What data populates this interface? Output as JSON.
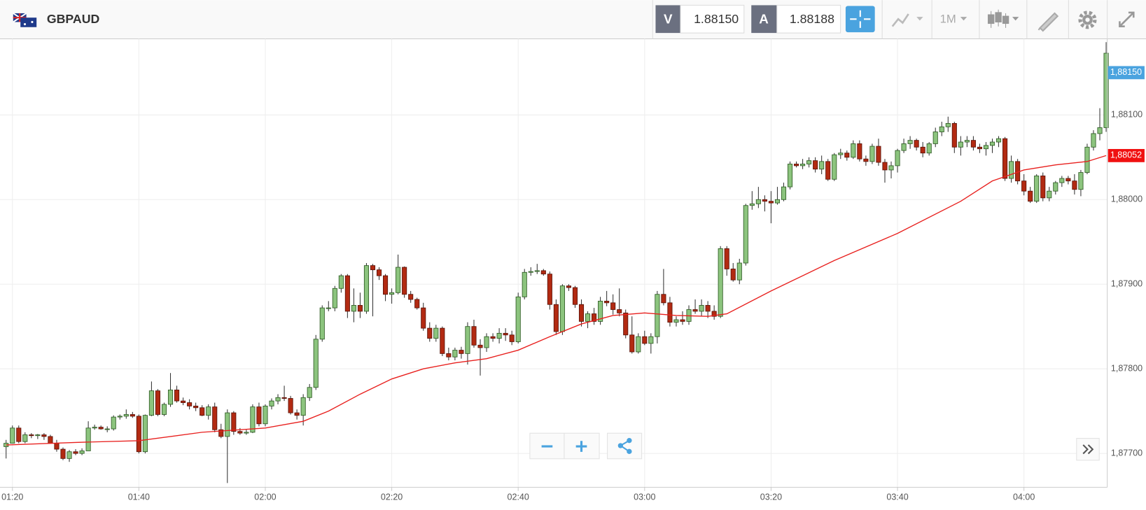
{
  "header": {
    "symbol": "GBPAUD",
    "bid_label": "V",
    "bid": "1.88150",
    "ask_label": "A",
    "ask": "1.88188",
    "timeframe": "1M"
  },
  "chart_data": {
    "type": "candlestick",
    "x": [
      "01:19",
      "01:20",
      "01:21",
      "01:22",
      "01:23",
      "01:24",
      "01:25",
      "01:26",
      "01:27",
      "01:28",
      "01:29",
      "01:30",
      "01:31",
      "01:32",
      "01:33",
      "01:34",
      "01:35",
      "01:36",
      "01:37",
      "01:38",
      "01:39",
      "01:40",
      "01:41",
      "01:42",
      "01:43",
      "01:44",
      "01:45",
      "01:46",
      "01:47",
      "01:48",
      "01:49",
      "01:50",
      "01:51",
      "01:52",
      "01:53",
      "01:54",
      "01:55",
      "01:56",
      "01:57",
      "01:58",
      "01:59",
      "02:00",
      "02:01",
      "02:02",
      "02:03",
      "02:04",
      "02:05",
      "02:06",
      "02:07",
      "02:08",
      "02:09",
      "02:10",
      "02:11",
      "02:12",
      "02:13",
      "02:14",
      "02:15",
      "02:16",
      "02:17",
      "02:18",
      "02:19",
      "02:20",
      "02:21",
      "02:22",
      "02:23",
      "02:24",
      "02:25",
      "02:26",
      "02:27",
      "02:28",
      "02:29",
      "02:30",
      "02:31",
      "02:32",
      "02:33",
      "02:34",
      "02:35",
      "02:36",
      "02:37",
      "02:38",
      "02:39",
      "02:40",
      "02:41",
      "02:42",
      "02:43",
      "02:44",
      "02:45",
      "02:46",
      "02:47",
      "02:48",
      "02:49",
      "02:50",
      "02:51",
      "02:52",
      "02:53",
      "02:54",
      "02:55",
      "02:56",
      "02:57",
      "02:58",
      "02:59",
      "03:00",
      "03:01",
      "03:02",
      "03:03",
      "03:04",
      "03:05",
      "03:06",
      "03:07",
      "03:08",
      "03:09",
      "03:10",
      "03:11",
      "03:12",
      "03:13",
      "03:14",
      "03:15",
      "03:16",
      "03:17",
      "03:18",
      "03:19",
      "03:20",
      "03:21",
      "03:22",
      "03:23",
      "03:24",
      "03:25",
      "03:26",
      "03:27",
      "03:28",
      "03:29",
      "03:30",
      "03:31",
      "03:32",
      "03:33",
      "03:34",
      "03:35",
      "03:36",
      "03:37",
      "03:38",
      "03:39",
      "03:40",
      "03:41",
      "03:42",
      "03:43",
      "03:44",
      "03:45",
      "03:46",
      "03:47",
      "03:48",
      "03:49",
      "03:50",
      "03:51",
      "03:52",
      "03:53",
      "03:54",
      "03:55",
      "03:56",
      "03:57",
      "03:58",
      "03:59",
      "04:00",
      "04:01",
      "04:02",
      "04:03",
      "04:04",
      "04:05",
      "04:06",
      "04:07",
      "04:08",
      "04:09",
      "04:10",
      "04:11",
      "04:12",
      "04:13"
    ],
    "candles": [
      [
        1.87708,
        1.87716,
        1.87694,
        1.87712
      ],
      [
        1.87712,
        1.87733,
        1.87712,
        1.8773
      ],
      [
        1.8773,
        1.87733,
        1.87712,
        1.87714
      ],
      [
        1.87714,
        1.87725,
        1.87712,
        1.87722
      ],
      [
        1.87722,
        1.87724,
        1.87718,
        1.87721
      ],
      [
        1.87721,
        1.87723,
        1.87717,
        1.87722
      ],
      [
        1.87722,
        1.87724,
        1.87716,
        1.8772
      ],
      [
        1.8772,
        1.87722,
        1.87712,
        1.87712
      ],
      [
        1.87712,
        1.87716,
        1.87702,
        1.87705
      ],
      [
        1.87705,
        1.87707,
        1.87692,
        1.87694
      ],
      [
        1.87694,
        1.87704,
        1.8769,
        1.87702
      ],
      [
        1.87702,
        1.87705,
        1.87698,
        1.877
      ],
      [
        1.877,
        1.87706,
        1.87698,
        1.87703
      ],
      [
        1.87703,
        1.87738,
        1.87703,
        1.8773
      ],
      [
        1.8773,
        1.87734,
        1.87728,
        1.87731
      ],
      [
        1.87731,
        1.87733,
        1.87728,
        1.87729
      ],
      [
        1.87729,
        1.87732,
        1.87725,
        1.87729
      ],
      [
        1.87729,
        1.87745,
        1.87727,
        1.87743
      ],
      [
        1.87743,
        1.87746,
        1.8774,
        1.87744
      ],
      [
        1.87744,
        1.87752,
        1.87741,
        1.87746
      ],
      [
        1.87746,
        1.87749,
        1.87742,
        1.87744
      ],
      [
        1.87744,
        1.87746,
        1.877,
        1.87702
      ],
      [
        1.87702,
        1.87746,
        1.877,
        1.87745
      ],
      [
        1.87745,
        1.87785,
        1.87744,
        1.87774
      ],
      [
        1.87774,
        1.87776,
        1.87744,
        1.87746
      ],
      [
        1.87746,
        1.8776,
        1.87744,
        1.87758
      ],
      [
        1.87758,
        1.87795,
        1.87755,
        1.87775
      ],
      [
        1.87775,
        1.8778,
        1.8776,
        1.87762
      ],
      [
        1.87762,
        1.87766,
        1.87757,
        1.8776
      ],
      [
        1.8776,
        1.87764,
        1.87752,
        1.87756
      ],
      [
        1.87756,
        1.8776,
        1.8775,
        1.87754
      ],
      [
        1.87754,
        1.87757,
        1.87744,
        1.87745
      ],
      [
        1.87745,
        1.87758,
        1.8774,
        1.87755
      ],
      [
        1.87755,
        1.8776,
        1.87725,
        1.87728
      ],
      [
        1.87728,
        1.87735,
        1.87718,
        1.8772
      ],
      [
        1.8772,
        1.87752,
        1.87665,
        1.87748
      ],
      [
        1.87748,
        1.8775,
        1.87722,
        1.87726
      ],
      [
        1.87726,
        1.8773,
        1.87722,
        1.87724
      ],
      [
        1.87724,
        1.87728,
        1.87722,
        1.87725
      ],
      [
        1.87725,
        1.87758,
        1.87724,
        1.87755
      ],
      [
        1.87755,
        1.8776,
        1.87732,
        1.87735
      ],
      [
        1.87735,
        1.87758,
        1.87732,
        1.87756
      ],
      [
        1.87756,
        1.87765,
        1.87752,
        1.87762
      ],
      [
        1.87762,
        1.8777,
        1.87758,
        1.87766
      ],
      [
        1.87766,
        1.8778,
        1.87762,
        1.87765
      ],
      [
        1.87765,
        1.87768,
        1.87746,
        1.87748
      ],
      [
        1.87748,
        1.87752,
        1.8774,
        1.87745
      ],
      [
        1.87745,
        1.8777,
        1.87733,
        1.87766
      ],
      [
        1.87766,
        1.87782,
        1.87762,
        1.87778
      ],
      [
        1.87778,
        1.8784,
        1.87775,
        1.87835
      ],
      [
        1.87835,
        1.87875,
        1.87832,
        1.87872
      ],
      [
        1.87872,
        1.8788,
        1.87868,
        1.87872
      ],
      [
        1.87872,
        1.87898,
        1.87868,
        1.87895
      ],
      [
        1.87895,
        1.87912,
        1.8789,
        1.8791
      ],
      [
        1.8791,
        1.87912,
        1.8786,
        1.87868
      ],
      [
        1.87868,
        1.87895,
        1.87855,
        1.87875
      ],
      [
        1.87875,
        1.8789,
        1.8786,
        1.87868
      ],
      [
        1.87868,
        1.87925,
        1.87865,
        1.87922
      ],
      [
        1.87922,
        1.87924,
        1.87862,
        1.87917
      ],
      [
        1.87917,
        1.8792,
        1.87905,
        1.8791
      ],
      [
        1.8791,
        1.87912,
        1.8788,
        1.87888
      ],
      [
        1.87888,
        1.87895,
        1.87877,
        1.8789
      ],
      [
        1.8789,
        1.87935,
        1.87888,
        1.8792
      ],
      [
        1.8792,
        1.87921,
        1.87884,
        1.87888
      ],
      [
        1.87888,
        1.87892,
        1.87878,
        1.87882
      ],
      [
        1.87882,
        1.87884,
        1.8787,
        1.87872
      ],
      [
        1.87872,
        1.87878,
        1.87845,
        1.87848
      ],
      [
        1.87848,
        1.87855,
        1.87832,
        1.87836
      ],
      [
        1.87836,
        1.87852,
        1.87832,
        1.87848
      ],
      [
        1.87848,
        1.8785,
        1.87815,
        1.87818
      ],
      [
        1.87818,
        1.87825,
        1.8781,
        1.87814
      ],
      [
        1.87814,
        1.87825,
        1.8781,
        1.87822
      ],
      [
        1.87822,
        1.87826,
        1.87812,
        1.87818
      ],
      [
        1.87818,
        1.87855,
        1.87805,
        1.8785
      ],
      [
        1.8785,
        1.87858,
        1.87825,
        1.87828
      ],
      [
        1.87828,
        1.87835,
        1.87792,
        1.87825
      ],
      [
        1.87825,
        1.87842,
        1.8782,
        1.87838
      ],
      [
        1.87838,
        1.87842,
        1.87832,
        1.87836
      ],
      [
        1.87836,
        1.87848,
        1.8783,
        1.87842
      ],
      [
        1.87842,
        1.87848,
        1.87833,
        1.8784
      ],
      [
        1.8784,
        1.87845,
        1.87828,
        1.87832
      ],
      [
        1.87832,
        1.8789,
        1.8783,
        1.87885
      ],
      [
        1.87885,
        1.87918,
        1.87882,
        1.87914
      ],
      [
        1.87914,
        1.8792,
        1.8791,
        1.87915
      ],
      [
        1.87915,
        1.87924,
        1.87912,
        1.87916
      ],
      [
        1.87916,
        1.87918,
        1.8791,
        1.87912
      ],
      [
        1.87912,
        1.87915,
        1.8787,
        1.87876
      ],
      [
        1.87876,
        1.87882,
        1.8784,
        1.87844
      ],
      [
        1.87844,
        1.879,
        1.8784,
        1.87898
      ],
      [
        1.87898,
        1.879,
        1.87892,
        1.87896
      ],
      [
        1.87896,
        1.87898,
        1.87872,
        1.87876
      ],
      [
        1.87876,
        1.87882,
        1.8785,
        1.87856
      ],
      [
        1.87856,
        1.87868,
        1.87848,
        1.87865
      ],
      [
        1.87865,
        1.87872,
        1.87852,
        1.87856
      ],
      [
        1.87856,
        1.87885,
        1.87852,
        1.8788
      ],
      [
        1.8788,
        1.87892,
        1.87874,
        1.87878
      ],
      [
        1.87878,
        1.87888,
        1.87864,
        1.8787
      ],
      [
        1.8787,
        1.87895,
        1.87862,
        1.87866
      ],
      [
        1.87866,
        1.8787,
        1.87836,
        1.8784
      ],
      [
        1.8784,
        1.87862,
        1.87818,
        1.8782
      ],
      [
        1.8782,
        1.87842,
        1.87818,
        1.87838
      ],
      [
        1.87838,
        1.87845,
        1.87828,
        1.8783
      ],
      [
        1.8783,
        1.87842,
        1.87818,
        1.87838
      ],
      [
        1.87838,
        1.87892,
        1.8783,
        1.87888
      ],
      [
        1.87888,
        1.87918,
        1.87875,
        1.87878
      ],
      [
        1.87878,
        1.87885,
        1.8785,
        1.87855
      ],
      [
        1.87855,
        1.87862,
        1.8785,
        1.87858
      ],
      [
        1.87858,
        1.87868,
        1.87852,
        1.87856
      ],
      [
        1.87856,
        1.87875,
        1.87852,
        1.8787
      ],
      [
        1.8787,
        1.87882,
        1.87865,
        1.87868
      ],
      [
        1.87868,
        1.87882,
        1.87862,
        1.87875
      ],
      [
        1.87875,
        1.8788,
        1.8786,
        1.87868
      ],
      [
        1.87868,
        1.87875,
        1.87858,
        1.87862
      ],
      [
        1.87862,
        1.87945,
        1.8786,
        1.87942
      ],
      [
        1.87942,
        1.87945,
        1.8791,
        1.87918
      ],
      [
        1.87918,
        1.87925,
        1.87903,
        1.87905
      ],
      [
        1.87905,
        1.8793,
        1.879,
        1.87925
      ],
      [
        1.87925,
        1.87995,
        1.87922,
        1.87993
      ],
      [
        1.87993,
        1.8801,
        1.87988,
        1.87995
      ],
      [
        1.87995,
        1.88015,
        1.8799,
        1.88
      ],
      [
        1.88,
        1.88005,
        1.87986,
        1.87998
      ],
      [
        1.87998,
        1.8801,
        1.87972,
        1.87996
      ],
      [
        1.87996,
        1.88015,
        1.87994,
        1.88
      ],
      [
        1.88,
        1.8802,
        1.87998,
        1.88015
      ],
      [
        1.88015,
        1.88045,
        1.88012,
        1.88042
      ],
      [
        1.88042,
        1.88045,
        1.88038,
        1.8804
      ],
      [
        1.8804,
        1.88048,
        1.88036,
        1.88042
      ],
      [
        1.88042,
        1.8805,
        1.88038,
        1.88046
      ],
      [
        1.88046,
        1.8805,
        1.88032,
        1.88036
      ],
      [
        1.88036,
        1.88052,
        1.8803,
        1.88045
      ],
      [
        1.88045,
        1.88048,
        1.88022,
        1.88024
      ],
      [
        1.88024,
        1.88055,
        1.88022,
        1.88053
      ],
      [
        1.88053,
        1.8806,
        1.88048,
        1.88055
      ],
      [
        1.88055,
        1.88058,
        1.88046,
        1.8805
      ],
      [
        1.8805,
        1.8807,
        1.88048,
        1.88066
      ],
      [
        1.88066,
        1.8807,
        1.88045,
        1.88048
      ],
      [
        1.88048,
        1.88052,
        1.8804,
        1.88045
      ],
      [
        1.88045,
        1.88066,
        1.88042,
        1.88063
      ],
      [
        1.88063,
        1.88072,
        1.8804,
        1.88044
      ],
      [
        1.88044,
        1.88048,
        1.8802,
        1.88035
      ],
      [
        1.88035,
        1.88045,
        1.88025,
        1.8804
      ],
      [
        1.8804,
        1.8806,
        1.88032,
        1.88058
      ],
      [
        1.88058,
        1.88072,
        1.88055,
        1.88066
      ],
      [
        1.88066,
        1.88075,
        1.8806,
        1.8807
      ],
      [
        1.8807,
        1.88072,
        1.88058,
        1.88062
      ],
      [
        1.88062,
        1.88068,
        1.8805,
        1.88055
      ],
      [
        1.88055,
        1.88068,
        1.88052,
        1.88066
      ],
      [
        1.88066,
        1.88085,
        1.88062,
        1.8808
      ],
      [
        1.8808,
        1.88092,
        1.88075,
        1.88086
      ],
      [
        1.88086,
        1.88098,
        1.8808,
        1.8809
      ],
      [
        1.8809,
        1.88092,
        1.88055,
        1.88062
      ],
      [
        1.88062,
        1.88075,
        1.88052,
        1.88068
      ],
      [
        1.88068,
        1.88075,
        1.88062,
        1.8807
      ],
      [
        1.8807,
        1.88075,
        1.88058,
        1.88062
      ],
      [
        1.88062,
        1.88066,
        1.88055,
        1.8806
      ],
      [
        1.8806,
        1.88068,
        1.88052,
        1.88064
      ],
      [
        1.88064,
        1.88072,
        1.88055,
        1.88068
      ],
      [
        1.88068,
        1.88075,
        1.88062,
        1.88072
      ],
      [
        1.88072,
        1.88074,
        1.88022,
        1.88025
      ],
      [
        1.88025,
        1.88052,
        1.8802,
        1.88045
      ],
      [
        1.88045,
        1.88048,
        1.88018,
        1.88022
      ],
      [
        1.88022,
        1.8803,
        1.88005,
        1.8801
      ],
      [
        1.8801,
        1.88015,
        1.87996,
        1.87998
      ],
      [
        1.87998,
        1.8803,
        1.87996,
        1.88028
      ],
      [
        1.88028,
        1.88032,
        1.87998,
        1.88002
      ],
      [
        1.88002,
        1.88015,
        1.87998,
        1.8801
      ],
      [
        1.8801,
        1.88022,
        1.88006,
        1.8802
      ],
      [
        1.8802,
        1.88028,
        1.88015,
        1.88025
      ],
      [
        1.88025,
        1.88028,
        1.88018,
        1.88022
      ],
      [
        1.88022,
        1.8803,
        1.88006,
        1.88012
      ],
      [
        1.88012,
        1.88035,
        1.88004,
        1.88032
      ],
      [
        1.88032,
        1.88066,
        1.8803,
        1.88062
      ],
      [
        1.88062,
        1.88082,
        1.88058,
        1.88078
      ],
      [
        1.88078,
        1.88108,
        1.8807,
        1.88085
      ],
      [
        1.88085,
        1.88186,
        1.8808,
        1.88173
      ]
    ],
    "up_color": "#8cc47e",
    "down_color": "#b22a12",
    "moving_average": {
      "color": "#e8201e",
      "x": [
        "01:19",
        "01:30",
        "01:40",
        "01:50",
        "02:00",
        "02:06",
        "02:10",
        "02:15",
        "02:20",
        "02:25",
        "02:30",
        "02:35",
        "02:40",
        "02:45",
        "02:50",
        "02:55",
        "03:00",
        "03:05",
        "03:10",
        "03:13",
        "03:20",
        "03:30",
        "03:40",
        "03:50",
        "03:55",
        "04:00",
        "04:05",
        "04:10",
        "04:13"
      ],
      "values": [
        1.8771,
        1.87713,
        1.87715,
        1.87725,
        1.8773,
        1.87738,
        1.8775,
        1.8777,
        1.87788,
        1.878,
        1.87807,
        1.87812,
        1.87822,
        1.87838,
        1.87853,
        1.87863,
        1.87866,
        1.87863,
        1.87862,
        1.87865,
        1.87892,
        1.87928,
        1.8796,
        1.87998,
        1.88022,
        1.88035,
        1.88041,
        1.88045,
        1.88052
      ]
    },
    "ylim": [
      1.8766,
      1.8819
    ],
    "yticks": [
      {
        "value": 1.877,
        "label": "1,87700"
      },
      {
        "value": 1.878,
        "label": "1,87800"
      },
      {
        "value": 1.879,
        "label": "1,87900"
      },
      {
        "value": 1.88,
        "label": "1,88000"
      },
      {
        "value": 1.881,
        "label": "1,88100"
      }
    ],
    "xticks": [
      "01:20",
      "01:40",
      "02:00",
      "02:20",
      "02:40",
      "03:00",
      "03:20",
      "03:40",
      "04:00"
    ],
    "price_marker": {
      "value": 1.8815,
      "label": "1,88150",
      "color": "#4aa3df"
    },
    "average_marker": {
      "value": 1.88052,
      "label": "1,88052",
      "color": "#f01010"
    },
    "grid": true
  }
}
